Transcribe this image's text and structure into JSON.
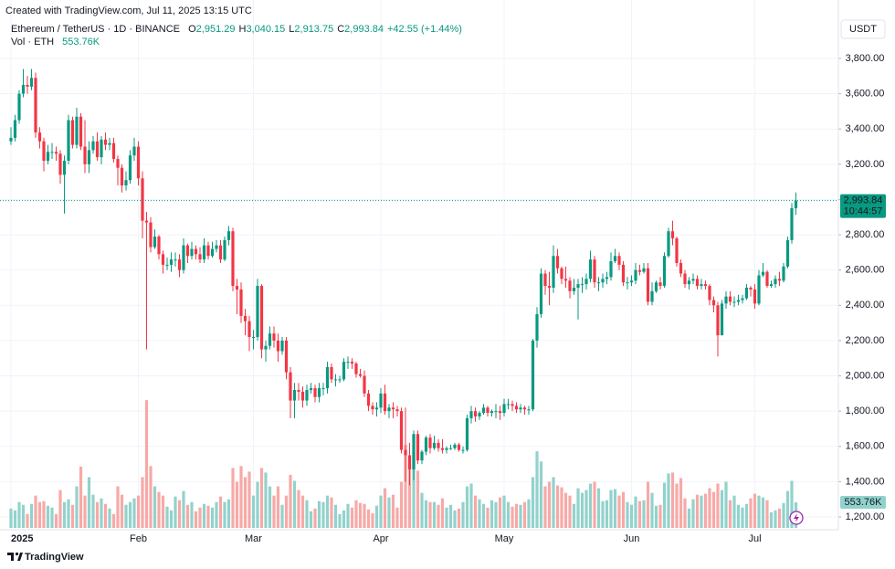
{
  "chart_data": {
    "type": "candlestick",
    "credit": "Created with TradingView.com, Jul 11, 2025 13:15 UTC",
    "title": "Ethereum / TetherUS · 1D · BINANCE",
    "ohlc_header": [
      {
        "key": "O",
        "text": "2,951.29"
      },
      {
        "key": "H",
        "text": "3,040.15"
      },
      {
        "key": "L",
        "text": "2,913.75"
      },
      {
        "key": "C",
        "text": "2,993.84"
      }
    ],
    "change": "+42.55 (+1.44%)",
    "volume_title": "Vol · ETH",
    "volume_label": "553.76K",
    "currency": "USDT",
    "last_price_label": "2,993.84",
    "countdown": "10:44:57",
    "brand": "TradingView",
    "up_color": "#089981",
    "down_color": "#f23645",
    "volume_up_color": "#92d2cc",
    "volume_down_color": "#f7a9a7",
    "grid": true,
    "ylim": [
      1200,
      3800
    ],
    "yticks": [
      {
        "value": 1200,
        "label": "1,200.00"
      },
      {
        "value": 1400,
        "label": "1,400.00"
      },
      {
        "value": 1600,
        "label": "1,600.00"
      },
      {
        "value": 1800,
        "label": "1,800.00"
      },
      {
        "value": 2000,
        "label": "2,000.00"
      },
      {
        "value": 2200,
        "label": "2,200.00"
      },
      {
        "value": 2400,
        "label": "2,400.00"
      },
      {
        "value": 2600,
        "label": "2,600.00"
      },
      {
        "value": 2800,
        "label": "2,800.00"
      },
      {
        "value": 3000,
        "label": "3,000.00"
      },
      {
        "value": 3200,
        "label": "3,200.00"
      },
      {
        "value": 3400,
        "label": "3,400.00"
      },
      {
        "value": 3600,
        "label": "3,600.00"
      },
      {
        "value": 3800,
        "label": "3,800.00"
      }
    ],
    "xticks": [
      {
        "value": 0,
        "label": "2025"
      },
      {
        "value": 31,
        "label": "Feb"
      },
      {
        "value": 59,
        "label": "Mar"
      },
      {
        "value": 90,
        "label": "Apr"
      },
      {
        "value": 120,
        "label": "May"
      },
      {
        "value": 151,
        "label": "Jun"
      },
      {
        "value": 181,
        "label": "Jul"
      }
    ],
    "open": [
      3330,
      3350,
      3450,
      3600,
      3650,
      3640,
      3690,
      3380,
      3330,
      3220,
      3270,
      3270,
      3260,
      3140,
      3220,
      3450,
      3310,
      3470,
      3300,
      3200,
      3280,
      3330,
      3240,
      3340,
      3310,
      3320,
      3230,
      3180,
      3080,
      3110,
      3250,
      3300,
      3120,
      2880,
      2870,
      2730,
      2790,
      2690,
      2630,
      2630,
      2660,
      2660,
      2600,
      2740,
      2680,
      2720,
      2690,
      2660,
      2740,
      2680,
      2720,
      2740,
      2660,
      2770,
      2820,
      2510,
      2490,
      2340,
      2310,
      2220,
      2220,
      2510,
      2150,
      2170,
      2240,
      2200,
      2140,
      2200,
      2020,
      1860,
      1920,
      1910,
      1860,
      1920,
      1930,
      1880,
      1930,
      1930,
      2050,
      1980,
      1980,
      1980,
      2080,
      2080,
      2070,
      2010,
      2000,
      1900,
      1830,
      1810,
      1820,
      1900,
      1800,
      1820,
      1810,
      1800,
      1580,
      1550,
      1470,
      1670,
      1520,
      1570,
      1650,
      1590,
      1620,
      1590,
      1580,
      1590,
      1590,
      1610,
      1580,
      1580,
      1760,
      1800,
      1770,
      1790,
      1820,
      1790,
      1800,
      1800,
      1790,
      1840,
      1840,
      1830,
      1810,
      1820,
      1810,
      1810,
      2200,
      2350,
      2580,
      2510,
      2500,
      2680,
      2610,
      2550,
      2540,
      2480,
      2500,
      2520,
      2520,
      2550,
      2660,
      2530,
      2530,
      2550,
      2560,
      2650,
      2680,
      2630,
      2530,
      2530,
      2540,
      2600,
      2590,
      2610,
      2420,
      2480,
      2530,
      2510,
      2680,
      2820,
      2780,
      2640,
      2580,
      2520,
      2540,
      2550,
      2510,
      2520,
      2510,
      2430,
      2400,
      2230,
      2410,
      2450,
      2420,
      2420,
      2430,
      2440,
      2500,
      2490,
      2410,
      2570,
      2590,
      2510,
      2520,
      2550,
      2540,
      2620,
      2770,
      2951.29
    ],
    "high": [
      3410,
      3480,
      3620,
      3740,
      3700,
      3740,
      3720,
      3410,
      3350,
      3310,
      3320,
      3300,
      3280,
      3250,
      3480,
      3470,
      3520,
      3490,
      3450,
      3330,
      3360,
      3380,
      3360,
      3380,
      3350,
      3350,
      3250,
      3200,
      3160,
      3280,
      3350,
      3330,
      3160,
      2930,
      2900,
      2830,
      2800,
      2710,
      2670,
      2700,
      2700,
      2690,
      2780,
      2750,
      2760,
      2740,
      2730,
      2780,
      2760,
      2760,
      2770,
      2770,
      2790,
      2850,
      2840,
      2550,
      2530,
      2380,
      2340,
      2260,
      2550,
      2520,
      2200,
      2280,
      2280,
      2240,
      2220,
      2220,
      2050,
      1960,
      1960,
      1940,
      1950,
      1960,
      1950,
      1960,
      1960,
      2080,
      2070,
      2010,
      2000,
      2100,
      2110,
      2100,
      2080,
      2040,
      2030,
      1920,
      1850,
      1850,
      1930,
      1950,
      1840,
      1850,
      1830,
      1820,
      1820,
      1620,
      1690,
      1690,
      1580,
      1660,
      1670,
      1660,
      1640,
      1640,
      1600,
      1610,
      1620,
      1620,
      1600,
      1780,
      1830,
      1820,
      1800,
      1840,
      1830,
      1810,
      1840,
      1830,
      1870,
      1870,
      1860,
      1850,
      1840,
      1830,
      1830,
      2210,
      2390,
      2610,
      2600,
      2590,
      2740,
      2720,
      2620,
      2620,
      2560,
      2550,
      2550,
      2560,
      2580,
      2710,
      2680,
      2560,
      2580,
      2590,
      2700,
      2720,
      2700,
      2650,
      2560,
      2570,
      2640,
      2630,
      2640,
      2640,
      2530,
      2540,
      2560,
      2700,
      2840,
      2880,
      2790,
      2660,
      2600,
      2560,
      2580,
      2570,
      2550,
      2540,
      2520,
      2450,
      2420,
      2430,
      2480,
      2480,
      2450,
      2460,
      2460,
      2520,
      2510,
      2520,
      2600,
      2640,
      2600,
      2540,
      2570,
      2590,
      2640,
      2790,
      2980,
      3040.15
    ],
    "low": [
      3310,
      3330,
      3430,
      3580,
      3600,
      3620,
      3350,
      3290,
      3160,
      3200,
      3230,
      3220,
      3090,
      2920,
      3200,
      3290,
      3290,
      3280,
      3150,
      3150,
      3260,
      3220,
      3200,
      3280,
      3280,
      3210,
      3080,
      3040,
      3050,
      3090,
      3220,
      3080,
      2780,
      2150,
      2700,
      2720,
      2660,
      2580,
      2600,
      2590,
      2620,
      2560,
      2580,
      2640,
      2660,
      2660,
      2640,
      2640,
      2660,
      2670,
      2700,
      2640,
      2650,
      2740,
      2480,
      2350,
      2300,
      2230,
      2140,
      2150,
      2200,
      2100,
      2080,
      2150,
      2160,
      2080,
      2120,
      1980,
      1760,
      1760,
      1860,
      1820,
      1830,
      1900,
      1850,
      1850,
      1890,
      1900,
      1960,
      1940,
      1960,
      1970,
      2040,
      2040,
      1990,
      1990,
      1880,
      1800,
      1780,
      1770,
      1790,
      1780,
      1760,
      1760,
      1770,
      1560,
      1400,
      1380,
      1410,
      1500,
      1500,
      1550,
      1560,
      1580,
      1570,
      1560,
      1560,
      1580,
      1580,
      1570,
      1560,
      1570,
      1730,
      1740,
      1750,
      1780,
      1770,
      1770,
      1760,
      1750,
      1770,
      1810,
      1800,
      1790,
      1790,
      1780,
      1780,
      1800,
      2160,
      2330,
      2460,
      2400,
      2470,
      2580,
      2520,
      2500,
      2440,
      2460,
      2320,
      2470,
      2490,
      2530,
      2500,
      2480,
      2500,
      2520,
      2540,
      2640,
      2600,
      2510,
      2490,
      2510,
      2520,
      2570,
      2580,
      2400,
      2400,
      2470,
      2490,
      2500,
      2670,
      2740,
      2620,
      2560,
      2500,
      2490,
      2520,
      2490,
      2490,
      2490,
      2400,
      2360,
      2110,
      2230,
      2380,
      2400,
      2390,
      2400,
      2410,
      2430,
      2450,
      2380,
      2400,
      2560,
      2500,
      2500,
      2500,
      2510,
      2530,
      2610,
      2750,
      2913.75
    ],
    "close": [
      3350,
      3450,
      3600,
      3650,
      3640,
      3690,
      3380,
      3330,
      3220,
      3270,
      3270,
      3260,
      3140,
      3220,
      3450,
      3310,
      3470,
      3300,
      3200,
      3280,
      3330,
      3240,
      3340,
      3310,
      3320,
      3230,
      3180,
      3080,
      3110,
      3250,
      3300,
      3120,
      2880,
      2870,
      2730,
      2790,
      2690,
      2630,
      2630,
      2660,
      2660,
      2600,
      2740,
      2680,
      2720,
      2690,
      2660,
      2740,
      2680,
      2720,
      2740,
      2660,
      2770,
      2820,
      2510,
      2490,
      2340,
      2310,
      2220,
      2220,
      2510,
      2150,
      2170,
      2240,
      2200,
      2140,
      2200,
      2020,
      1860,
      1920,
      1910,
      1860,
      1920,
      1930,
      1880,
      1930,
      1930,
      2050,
      1980,
      1980,
      1980,
      2080,
      2080,
      2070,
      2010,
      2000,
      1900,
      1830,
      1810,
      1820,
      1900,
      1800,
      1820,
      1810,
      1800,
      1580,
      1550,
      1470,
      1670,
      1520,
      1570,
      1650,
      1590,
      1620,
      1590,
      1580,
      1590,
      1590,
      1610,
      1580,
      1580,
      1760,
      1800,
      1770,
      1790,
      1820,
      1790,
      1800,
      1800,
      1790,
      1840,
      1840,
      1830,
      1810,
      1820,
      1810,
      1810,
      2200,
      2350,
      2580,
      2510,
      2500,
      2680,
      2610,
      2550,
      2540,
      2480,
      2500,
      2520,
      2520,
      2550,
      2660,
      2530,
      2530,
      2550,
      2560,
      2650,
      2680,
      2630,
      2530,
      2530,
      2540,
      2600,
      2590,
      2610,
      2420,
      2480,
      2530,
      2510,
      2680,
      2820,
      2780,
      2640,
      2580,
      2520,
      2540,
      2550,
      2510,
      2520,
      2510,
      2430,
      2400,
      2230,
      2410,
      2450,
      2420,
      2420,
      2430,
      2440,
      2500,
      2490,
      2410,
      2570,
      2590,
      2510,
      2520,
      2550,
      2540,
      2620,
      2770,
      2951.29,
      2993.84
    ],
    "volume": [
      420,
      380,
      560,
      500,
      300,
      520,
      700,
      560,
      580,
      480,
      440,
      300,
      820,
      560,
      620,
      500,
      900,
      1330,
      700,
      1100,
      720,
      560,
      640,
      520,
      420,
      300,
      900,
      720,
      500,
      560,
      640,
      700,
      1100,
      2770,
      1340,
      900,
      780,
      700,
      460,
      380,
      680,
      600,
      800,
      500,
      560,
      360,
      440,
      520,
      480,
      440,
      560,
      680,
      560,
      620,
      1300,
      1000,
      1340,
      1100,
      1220,
      700,
      1000,
      1300,
      1200,
      900,
      700,
      900,
      500,
      700,
      1150,
      1020,
      820,
      700,
      600,
      360,
      420,
      580,
      560,
      700,
      660,
      500,
      300,
      380,
      520,
      440,
      600,
      540,
      520,
      400,
      320,
      480,
      700,
      860,
      660,
      720,
      440,
      1000,
      1800,
      1400,
      1640,
      1240,
      760,
      600,
      560,
      560,
      500,
      640,
      440,
      500,
      380,
      420,
      560,
      900,
      960,
      700,
      620,
      520,
      440,
      600,
      560,
      660,
      700,
      560,
      460,
      520,
      500,
      560,
      620,
      1100,
      1660,
      1440,
      900,
      1000,
      1100,
      920,
      880,
      760,
      700,
      520,
      860,
      760,
      820,
      960,
      1000,
      860,
      580,
      600,
      820,
      840,
      700,
      780,
      560,
      500,
      680,
      580,
      600,
      1000,
      760,
      480,
      500,
      980,
      1180,
      1200,
      960,
      1080,
      640,
      420,
      620,
      720,
      700,
      740,
      860,
      780,
      960,
      820,
      1000,
      600,
      700,
      500,
      440,
      520,
      640,
      740,
      700,
      660,
      600,
      340,
      380,
      420,
      540,
      800,
      1020,
      553.76
    ]
  }
}
